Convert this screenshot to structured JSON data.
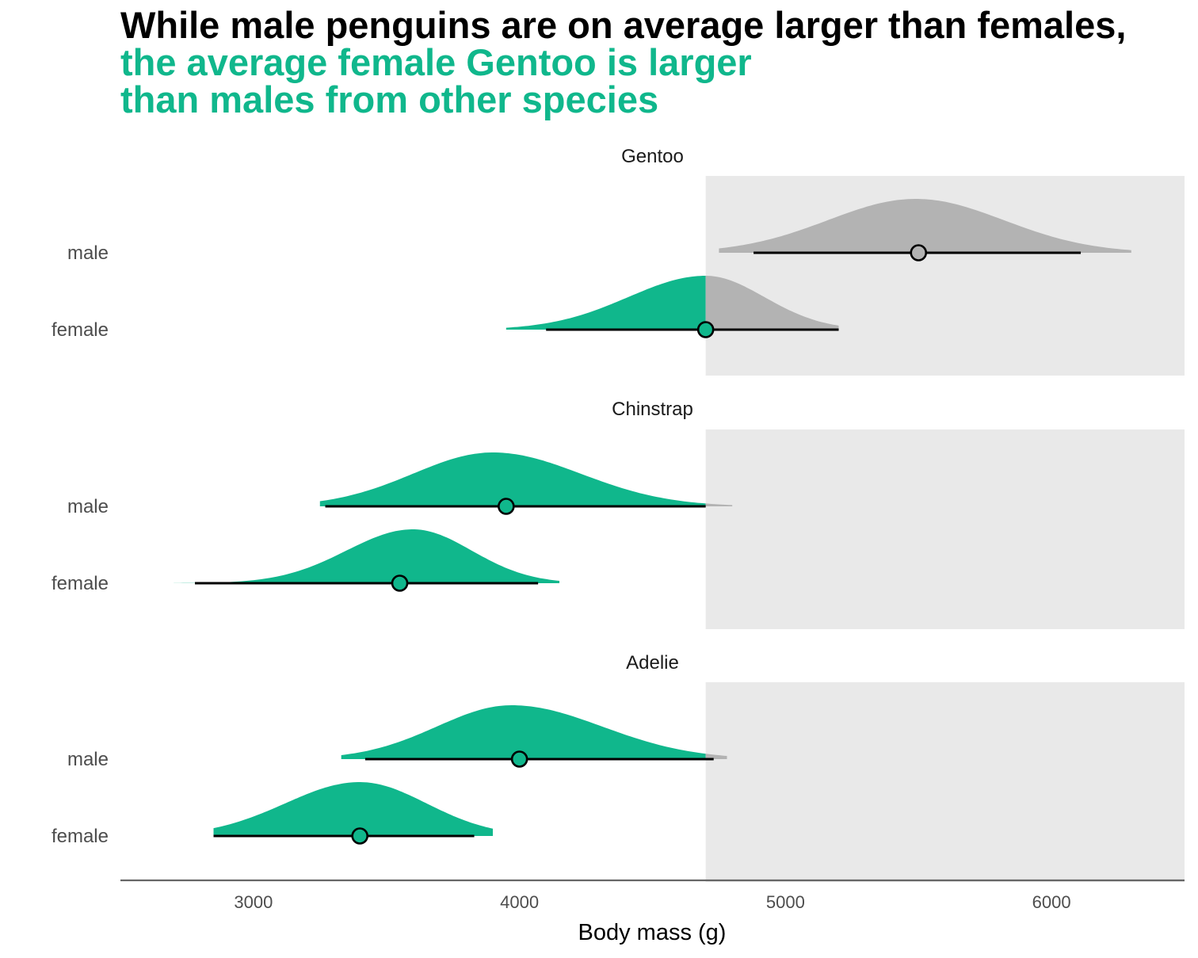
{
  "title": {
    "line1": "While male penguins are on average larger than females,",
    "line2": "the average female Gentoo is larger",
    "line3": "than males from other species"
  },
  "colors": {
    "highlight": "#10b78c",
    "muted": "#b3b3b3",
    "region": "#e9e9e9",
    "point_stroke": "#000000",
    "title_main": "#000000"
  },
  "chart_data": {
    "type": "half-eye (density + point interval)",
    "xlabel": "Body mass (g)",
    "xlim": [
      2500,
      6500
    ],
    "x_ticks": [
      3000,
      4000,
      5000,
      6000
    ],
    "x_tick_labels": [
      "3000",
      "4000",
      "5000",
      "6000"
    ],
    "highlight_threshold": 4700,
    "shaded_region": [
      4700,
      6500
    ],
    "facets": [
      {
        "name": "Gentoo",
        "groups": [
          {
            "sex": "male",
            "mean": 5500,
            "interval": [
              4880,
              6110
            ],
            "range": [
              4750,
              6300
            ],
            "peak": 5490,
            "sd_left": 330,
            "sd_right": 330
          },
          {
            "sex": "female",
            "mean": 4700,
            "interval": [
              4100,
              5200
            ],
            "range": [
              3950,
              5200
            ],
            "peak": 4700,
            "sd_left": 290,
            "sd_right": 220
          }
        ]
      },
      {
        "name": "Chinstrap",
        "groups": [
          {
            "sex": "male",
            "mean": 3950,
            "interval": [
              3270,
              4700
            ],
            "range": [
              3250,
              4800
            ],
            "peak": 3900,
            "sd_left": 300,
            "sd_right": 330
          },
          {
            "sex": "female",
            "mean": 3550,
            "interval": [
              2780,
              4070
            ],
            "range": [
              2700,
              4150
            ],
            "peak": 3600,
            "sd_left": 250,
            "sd_right": 220
          }
        ]
      },
      {
        "name": "Adelie",
        "groups": [
          {
            "sex": "male",
            "mean": 4000,
            "interval": [
              3420,
              4730
            ],
            "range": [
              3330,
              4780
            ],
            "peak": 3970,
            "sd_left": 280,
            "sd_right": 340
          },
          {
            "sex": "female",
            "mean": 3400,
            "interval": [
              2850,
              3830
            ],
            "range": [
              2850,
              3900
            ],
            "peak": 3400,
            "sd_left": 280,
            "sd_right": 250
          }
        ]
      }
    ]
  }
}
